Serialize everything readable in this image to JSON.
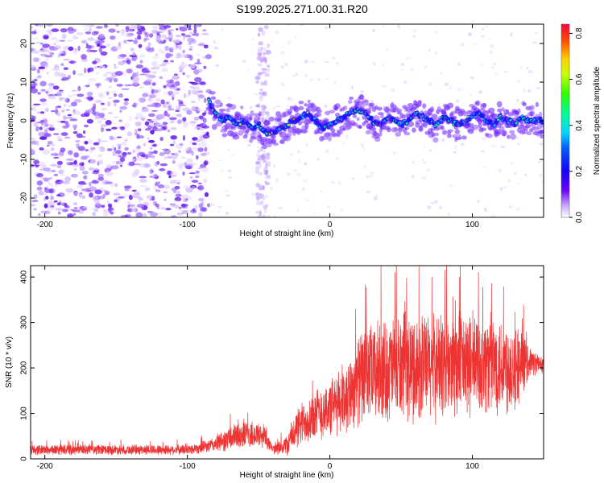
{
  "title": "S199.2025.271.00.31.R20",
  "colors": {
    "snr_line": "#ee3333",
    "axis": "#000000",
    "background": "#ffffff",
    "track_colormap": [
      "#4d00ff",
      "#0033ff",
      "#00c8ff",
      "#00ff66",
      "#88ff00",
      "#ffee00",
      "#ff6600",
      "#ff0033"
    ]
  },
  "chart_data": [
    {
      "type": "heatmap",
      "title": "",
      "xlabel": "Height of straight line (km)",
      "ylabel": "Frequency (Hz)",
      "xlim": [
        -210,
        150
      ],
      "ylim": [
        -25,
        25
      ],
      "x_ticks": [
        -200,
        -100,
        0,
        100
      ],
      "x_tick_labels": [
        "-200",
        "-100",
        "0",
        "100"
      ],
      "y_ticks": [
        -20,
        -10,
        0,
        10,
        20
      ],
      "y_tick_labels": [
        "-20",
        "-10",
        "0",
        "10",
        "20"
      ],
      "colorbar": {
        "label": "Normalized spectral amplitude",
        "range": [
          0.0,
          0.84
        ],
        "ticks": [
          0.0,
          0.2,
          0.4,
          0.6,
          0.8
        ],
        "tick_labels": [
          "0.0",
          "0.2",
          "0.4",
          "0.6",
          "0.8"
        ]
      },
      "noise_region_x": [
        -210,
        -85
      ],
      "track_start_x": -85,
      "track_frequency": {
        "x": [
          -85,
          -80,
          -75,
          -70,
          -65,
          -60,
          -55,
          -50,
          -45,
          -40,
          -35,
          -30,
          -25,
          -20,
          -15,
          -10,
          -5,
          0,
          5,
          10,
          15,
          20,
          25,
          30,
          35,
          40,
          45,
          50,
          55,
          60,
          65,
          70,
          75,
          80,
          85,
          90,
          95,
          100,
          105,
          110,
          115,
          120,
          125,
          130,
          135,
          140,
          145,
          150
        ],
        "y": [
          5,
          2,
          0,
          1,
          -1,
          0,
          -2,
          -1,
          -3,
          -3,
          -2,
          -1,
          0,
          1,
          2,
          0,
          -2,
          -1,
          0,
          1,
          2,
          3,
          2,
          0,
          -1,
          1,
          0,
          -1,
          0,
          2,
          1,
          0,
          -1,
          1,
          0,
          -1,
          0,
          1,
          2,
          0,
          -1,
          1,
          0,
          -1,
          1,
          0,
          0,
          0
        ]
      }
    },
    {
      "type": "line",
      "title": "",
      "xlabel": "Height of straight line (km)",
      "ylabel": "SNR (10 * v/v)",
      "xlim": [
        -210,
        150
      ],
      "ylim": [
        0,
        425
      ],
      "x_ticks": [
        -200,
        -100,
        0,
        100
      ],
      "x_tick_labels": [
        "-200",
        "-100",
        "0",
        "100"
      ],
      "y_ticks": [
        0,
        100,
        200,
        300,
        400
      ],
      "y_tick_labels": [
        "0",
        "100",
        "200",
        "300",
        "400"
      ],
      "series": [
        {
          "name": "SNR",
          "envelope_x": [
            -210,
            -100,
            -85,
            -70,
            -60,
            -45,
            -40,
            -30,
            -25,
            -15,
            0,
            10,
            20,
            30,
            50,
            80,
            110,
            130,
            140,
            150
          ],
          "mean": [
            20,
            20,
            28,
            45,
            55,
            50,
            20,
            30,
            60,
            90,
            110,
            130,
            175,
            190,
            200,
            205,
            210,
            205,
            215,
            205
          ],
          "spread": [
            12,
            12,
            15,
            30,
            35,
            30,
            10,
            25,
            45,
            60,
            70,
            80,
            110,
            120,
            130,
            130,
            125,
            115,
            35,
            20
          ]
        }
      ]
    }
  ]
}
